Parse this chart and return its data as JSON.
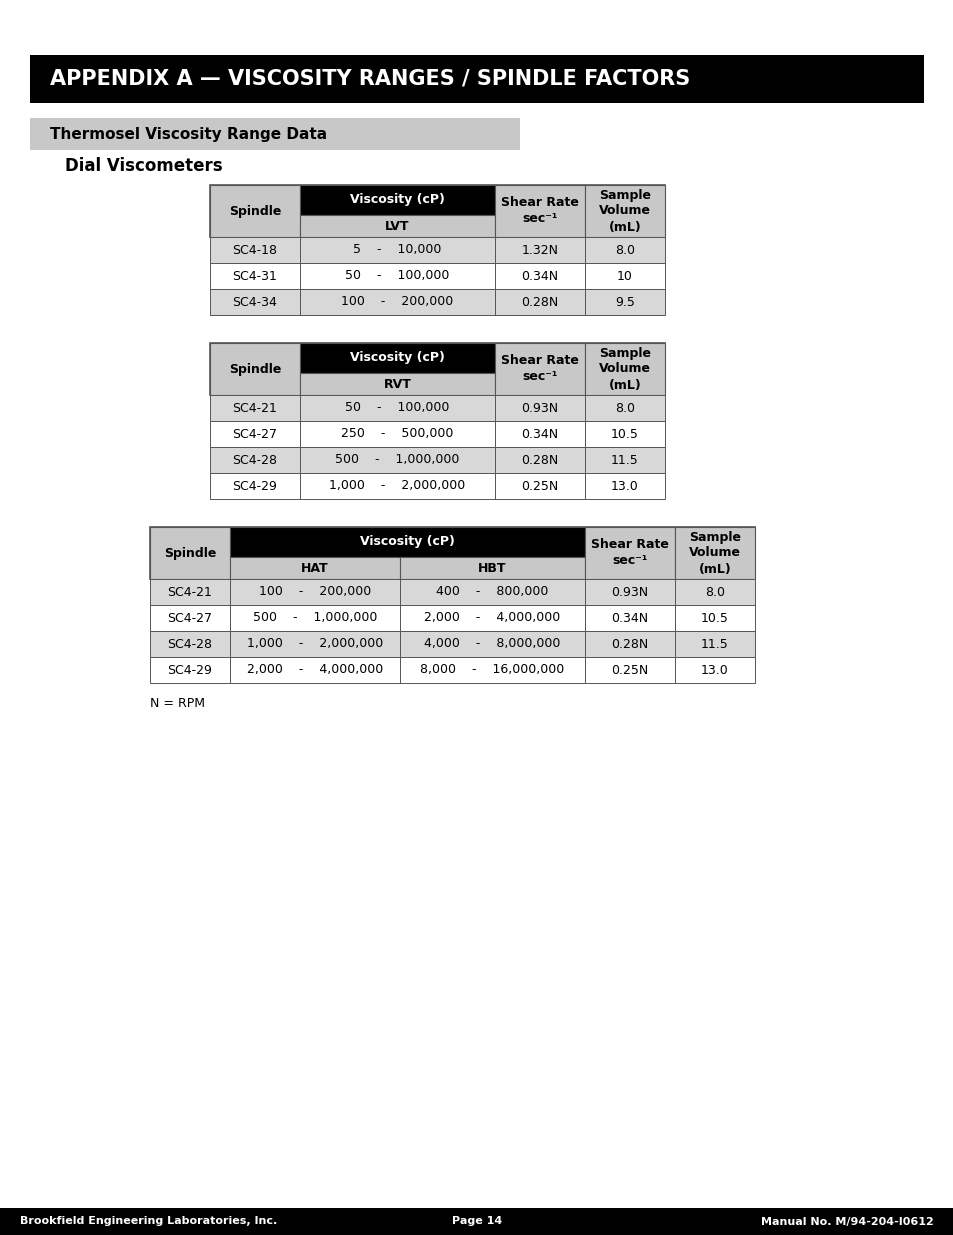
{
  "page_bg": "#ffffff",
  "title_bar_bg": "#000000",
  "title_text": "APPENDIX A — VISCOSITY RANGES / SPINDLE FACTORS",
  "title_text_color": "#ffffff",
  "subtitle_text": "Thermosel Viscosity Range Data",
  "subtitle_text_color": "#000000",
  "section_title": "Dial Viscometers",
  "footer_bg": "#000000",
  "footer_text_color": "#ffffff",
  "footer_left": "Brookfield Engineering Laboratories, Inc.",
  "footer_center": "Page 14",
  "footer_right": "Manual No. M/94-204-I0612",
  "header_gray": "#c8c8c8",
  "header_black": "#000000",
  "row_gray1": "#d8d8d8",
  "row_white": "#ffffff",
  "border_color": "#555555",
  "table1_rows": [
    [
      "SC4-18",
      "5    -    10,000",
      "1.32N",
      "8.0"
    ],
    [
      "SC4-31",
      "50    -    100,000",
      "0.34N",
      "10"
    ],
    [
      "SC4-34",
      "100    -    200,000",
      "0.28N",
      "9.5"
    ]
  ],
  "table2_rows": [
    [
      "SC4-21",
      "50    -    100,000",
      "0.93N",
      "8.0"
    ],
    [
      "SC4-27",
      "250    -    500,000",
      "0.34N",
      "10.5"
    ],
    [
      "SC4-28",
      "500    -    1,000,000",
      "0.28N",
      "11.5"
    ],
    [
      "SC4-29",
      "1,000    -    2,000,000",
      "0.25N",
      "13.0"
    ]
  ],
  "table3_rows": [
    [
      "SC4-21",
      "100    -    200,000",
      "400    -    800,000",
      "0.93N",
      "8.0"
    ],
    [
      "SC4-27",
      "500    -    1,000,000",
      "2,000    -    4,000,000",
      "0.34N",
      "10.5"
    ],
    [
      "SC4-28",
      "1,000    -    2,000,000",
      "4,000    -    8,000,000",
      "0.28N",
      "11.5"
    ],
    [
      "SC4-29",
      "2,000    -    4,000,000",
      "8,000    -    16,000,000",
      "0.25N",
      "13.0"
    ]
  ],
  "note": "N = RPM"
}
